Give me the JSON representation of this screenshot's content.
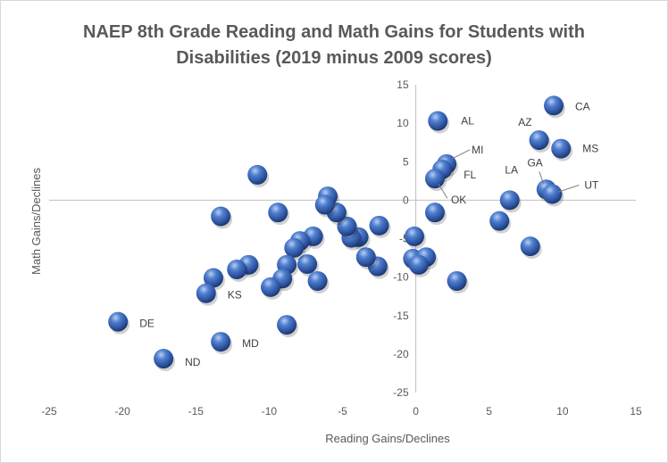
{
  "chart_data": {
    "type": "scatter",
    "title_line1": "NAEP 8th Grade Reading and Math Gains for Students with",
    "title_line2": "Disabilities (2019 minus 2009 scores)",
    "xlabel": "Reading Gains/Declines",
    "ylabel": "Math Gains/Declines",
    "xlim": [
      -25,
      15
    ],
    "ylim": [
      -25,
      15
    ],
    "xticks": [
      -25,
      -20,
      -15,
      -10,
      -5,
      0,
      5,
      10,
      15
    ],
    "yticks": [
      -25,
      -20,
      -15,
      -10,
      -5,
      0,
      5,
      10,
      15
    ],
    "grid": false,
    "marker_color": "#3a66b5",
    "points": [
      {
        "x": 9.4,
        "y": 12.3,
        "label": "CA"
      },
      {
        "x": 1.5,
        "y": 10.3,
        "label": "AL"
      },
      {
        "x": 8.4,
        "y": 7.8,
        "label": "AZ"
      },
      {
        "x": 9.9,
        "y": 6.7,
        "label": "MS"
      },
      {
        "x": 2.1,
        "y": 4.7,
        "label": "MI"
      },
      {
        "x": 1.8,
        "y": 4.0,
        "label": "FL"
      },
      {
        "x": 1.3,
        "y": 2.8,
        "label": "OK"
      },
      {
        "x": 8.9,
        "y": 1.4,
        "label": "GA"
      },
      {
        "x": 9.3,
        "y": 0.8,
        "label": "UT"
      },
      {
        "x": 6.4,
        "y": 0.0,
        "label": "LA"
      },
      {
        "x": 1.3,
        "y": -1.6
      },
      {
        "x": 5.7,
        "y": -2.7
      },
      {
        "x": 7.8,
        "y": -6.0
      },
      {
        "x": 2.8,
        "y": -10.5
      },
      {
        "x": -0.1,
        "y": -4.7
      },
      {
        "x": -0.2,
        "y": -7.6
      },
      {
        "x": 0.7,
        "y": -7.4
      },
      {
        "x": 0.2,
        "y": -8.4
      },
      {
        "x": -2.6,
        "y": -8.6
      },
      {
        "x": -3.4,
        "y": -7.4
      },
      {
        "x": -2.5,
        "y": -3.3
      },
      {
        "x": -3.9,
        "y": -4.8
      },
      {
        "x": -4.4,
        "y": -4.9
      },
      {
        "x": -4.7,
        "y": -3.4
      },
      {
        "x": -5.4,
        "y": -1.6
      },
      {
        "x": -6.0,
        "y": 0.5
      },
      {
        "x": -6.2,
        "y": -0.6
      },
      {
        "x": -7.0,
        "y": -4.7
      },
      {
        "x": -7.4,
        "y": -8.3
      },
      {
        "x": -6.7,
        "y": -10.5
      },
      {
        "x": -7.9,
        "y": -5.3
      },
      {
        "x": -8.3,
        "y": -6.2
      },
      {
        "x": -8.8,
        "y": -8.4
      },
      {
        "x": -9.1,
        "y": -10.2
      },
      {
        "x": -9.9,
        "y": -11.3
      },
      {
        "x": -9.4,
        "y": -1.6
      },
      {
        "x": -10.8,
        "y": 3.3
      },
      {
        "x": -11.4,
        "y": -8.4
      },
      {
        "x": -12.2,
        "y": -9.0
      },
      {
        "x": -13.3,
        "y": -2.1
      },
      {
        "x": -13.8,
        "y": -10.1
      },
      {
        "x": -14.3,
        "y": -12.1,
        "label": "KS"
      },
      {
        "x": -20.3,
        "y": -15.8,
        "label": "DE"
      },
      {
        "x": -13.3,
        "y": -18.4,
        "label": "MD"
      },
      {
        "x": -17.2,
        "y": -20.6,
        "label": "ND"
      },
      {
        "x": -8.8,
        "y": -16.2
      }
    ]
  }
}
